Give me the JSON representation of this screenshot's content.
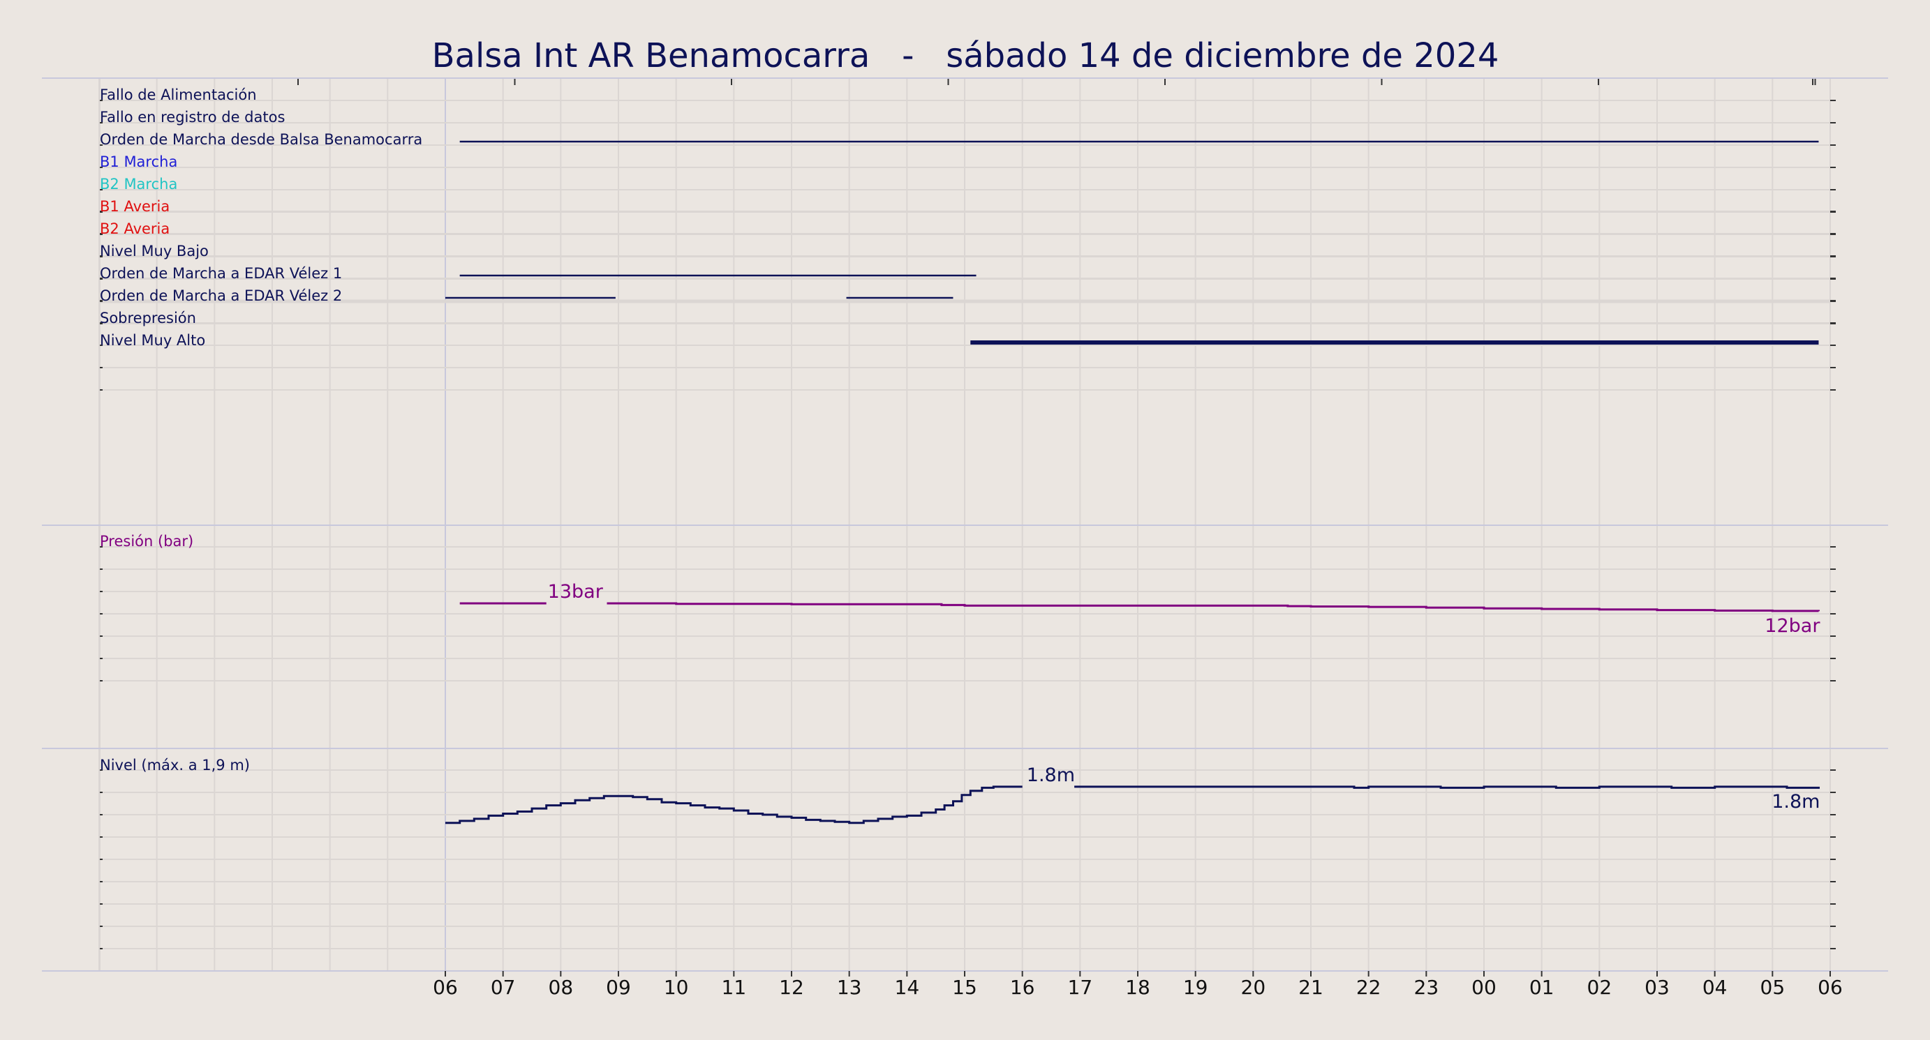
{
  "title": "Balsa Int AR Benamocarra   -   sábado 14 de diciembre de 2024",
  "colors": {
    "background": "#ebe6e1",
    "navy": "#0d1257",
    "blue": "#1f1fd6",
    "cyan": "#22c4c4",
    "red": "#e01010",
    "purple": "#800080",
    "grid": "#dbd6d3",
    "divider": "#c8c8dc"
  },
  "chart_data": {
    "type": "line",
    "x_axis": {
      "unit": "hour",
      "range": [
        0,
        24
      ],
      "tick_labels": [
        "06",
        "07",
        "08",
        "09",
        "10",
        "11",
        "12",
        "13",
        "14",
        "15",
        "16",
        "17",
        "18",
        "19",
        "20",
        "21",
        "22",
        "23",
        "00",
        "01",
        "02",
        "03",
        "04",
        "05",
        "06"
      ]
    },
    "grid": true,
    "digital_signals": [
      {
        "label": "Fallo de Alimentación",
        "color": "#0d1257",
        "intervals": []
      },
      {
        "label": "Fallo en registro de datos",
        "color": "#0d1257",
        "intervals": []
      },
      {
        "label": "Orden de Marcha desde Balsa Benamocarra",
        "color": "#0d1257",
        "intervals": [
          [
            0.25,
            23.8
          ]
        ]
      },
      {
        "label": "B1 Marcha",
        "color": "#1f1fd6",
        "intervals": []
      },
      {
        "label": "B2 Marcha",
        "color": "#22c4c4",
        "intervals": []
      },
      {
        "label": "B1 Averia",
        "color": "#e01010",
        "intervals": []
      },
      {
        "label": "B2 Averia",
        "color": "#e01010",
        "intervals": []
      },
      {
        "label": "Nivel Muy Bajo",
        "color": "#0d1257",
        "intervals": []
      },
      {
        "label": "Orden de Marcha a EDAR Vélez 1",
        "color": "#0d1257",
        "intervals": [
          [
            0.25,
            9.2
          ]
        ]
      },
      {
        "label": "Orden de Marcha a EDAR Vélez 2",
        "color": "#0d1257",
        "intervals": [
          [
            0.0,
            2.95
          ],
          [
            6.95,
            8.8
          ]
        ]
      },
      {
        "label": "Sobrepresión",
        "color": "#0d1257",
        "intervals": []
      },
      {
        "label": "Nivel Muy Alto",
        "color": "#0d1257",
        "intervals": [
          [
            9.1,
            23.8
          ]
        ]
      }
    ],
    "series": [
      {
        "name": "Presión (bar)",
        "color": "#800080",
        "ylim": [
          0,
          20
        ],
        "segments": [
          [
            [
              0.25,
              13.0
            ],
            [
              1.75,
              13.0
            ]
          ],
          [
            [
              2.8,
              13.0
            ],
            [
              4.0,
              12.95
            ],
            [
              5.0,
              12.95
            ],
            [
              6.0,
              12.92
            ],
            [
              7.0,
              12.92
            ],
            [
              8.0,
              12.92
            ],
            [
              8.6,
              12.85
            ],
            [
              9.0,
              12.8
            ],
            [
              10.0,
              12.8
            ],
            [
              11.0,
              12.8
            ],
            [
              12.0,
              12.8
            ],
            [
              13.0,
              12.8
            ],
            [
              14.0,
              12.8
            ],
            [
              14.6,
              12.75
            ],
            [
              15.0,
              12.72
            ],
            [
              16.0,
              12.68
            ],
            [
              17.0,
              12.62
            ],
            [
              18.0,
              12.55
            ],
            [
              19.0,
              12.5
            ],
            [
              20.0,
              12.45
            ],
            [
              21.0,
              12.4
            ],
            [
              22.0,
              12.35
            ],
            [
              23.0,
              12.32
            ],
            [
              23.8,
              12.3
            ]
          ]
        ],
        "annotations": [
          {
            "text": "13bar",
            "x": 1.75,
            "y": 13.0
          },
          {
            "text": "12bar",
            "x": 23.8,
            "y": 12.3
          }
        ]
      },
      {
        "name": "Nivel (máx. a 1,9 m)",
        "color": "#0d1257",
        "ylim": [
          0,
          2.15
        ],
        "segments": [
          [
            [
              0.0,
              1.43
            ],
            [
              0.25,
              1.45
            ],
            [
              0.5,
              1.47
            ],
            [
              0.75,
              1.5
            ],
            [
              1.0,
              1.52
            ],
            [
              1.25,
              1.54
            ],
            [
              1.5,
              1.57
            ],
            [
              1.75,
              1.6
            ],
            [
              2.0,
              1.62
            ],
            [
              2.25,
              1.65
            ],
            [
              2.5,
              1.67
            ],
            [
              2.75,
              1.69
            ],
            [
              3.0,
              1.69
            ],
            [
              3.25,
              1.68
            ],
            [
              3.5,
              1.66
            ],
            [
              3.75,
              1.63
            ],
            [
              4.0,
              1.62
            ],
            [
              4.25,
              1.6
            ],
            [
              4.5,
              1.58
            ],
            [
              4.75,
              1.57
            ],
            [
              5.0,
              1.55
            ],
            [
              5.25,
              1.52
            ],
            [
              5.5,
              1.51
            ],
            [
              5.75,
              1.49
            ],
            [
              6.0,
              1.48
            ],
            [
              6.25,
              1.46
            ],
            [
              6.5,
              1.45
            ],
            [
              6.75,
              1.44
            ],
            [
              7.0,
              1.43
            ],
            [
              7.25,
              1.45
            ],
            [
              7.5,
              1.47
            ],
            [
              7.75,
              1.49
            ],
            [
              8.0,
              1.5
            ],
            [
              8.25,
              1.53
            ],
            [
              8.5,
              1.56
            ],
            [
              8.65,
              1.6
            ],
            [
              8.8,
              1.64
            ],
            [
              8.95,
              1.7
            ],
            [
              9.1,
              1.74
            ],
            [
              9.3,
              1.77
            ],
            [
              9.5,
              1.78
            ],
            [
              10.0,
              1.78
            ]
          ],
          [
            [
              10.9,
              1.78
            ],
            [
              12.0,
              1.78
            ],
            [
              13.0,
              1.78
            ],
            [
              15.5,
              1.78
            ],
            [
              15.75,
              1.77
            ],
            [
              16.0,
              1.78
            ],
            [
              17.0,
              1.78
            ],
            [
              17.25,
              1.77
            ],
            [
              18.0,
              1.78
            ],
            [
              19.0,
              1.78
            ],
            [
              19.25,
              1.77
            ],
            [
              20.0,
              1.78
            ],
            [
              21.0,
              1.78
            ],
            [
              21.25,
              1.77
            ],
            [
              22.0,
              1.78
            ],
            [
              23.0,
              1.78
            ],
            [
              23.25,
              1.77
            ],
            [
              23.8,
              1.78
            ]
          ]
        ],
        "annotations": [
          {
            "text": "1.8m",
            "x": 10.05,
            "y": 1.78
          },
          {
            "text": "1.8m",
            "x": 23.8,
            "y": 1.78
          }
        ]
      }
    ]
  }
}
